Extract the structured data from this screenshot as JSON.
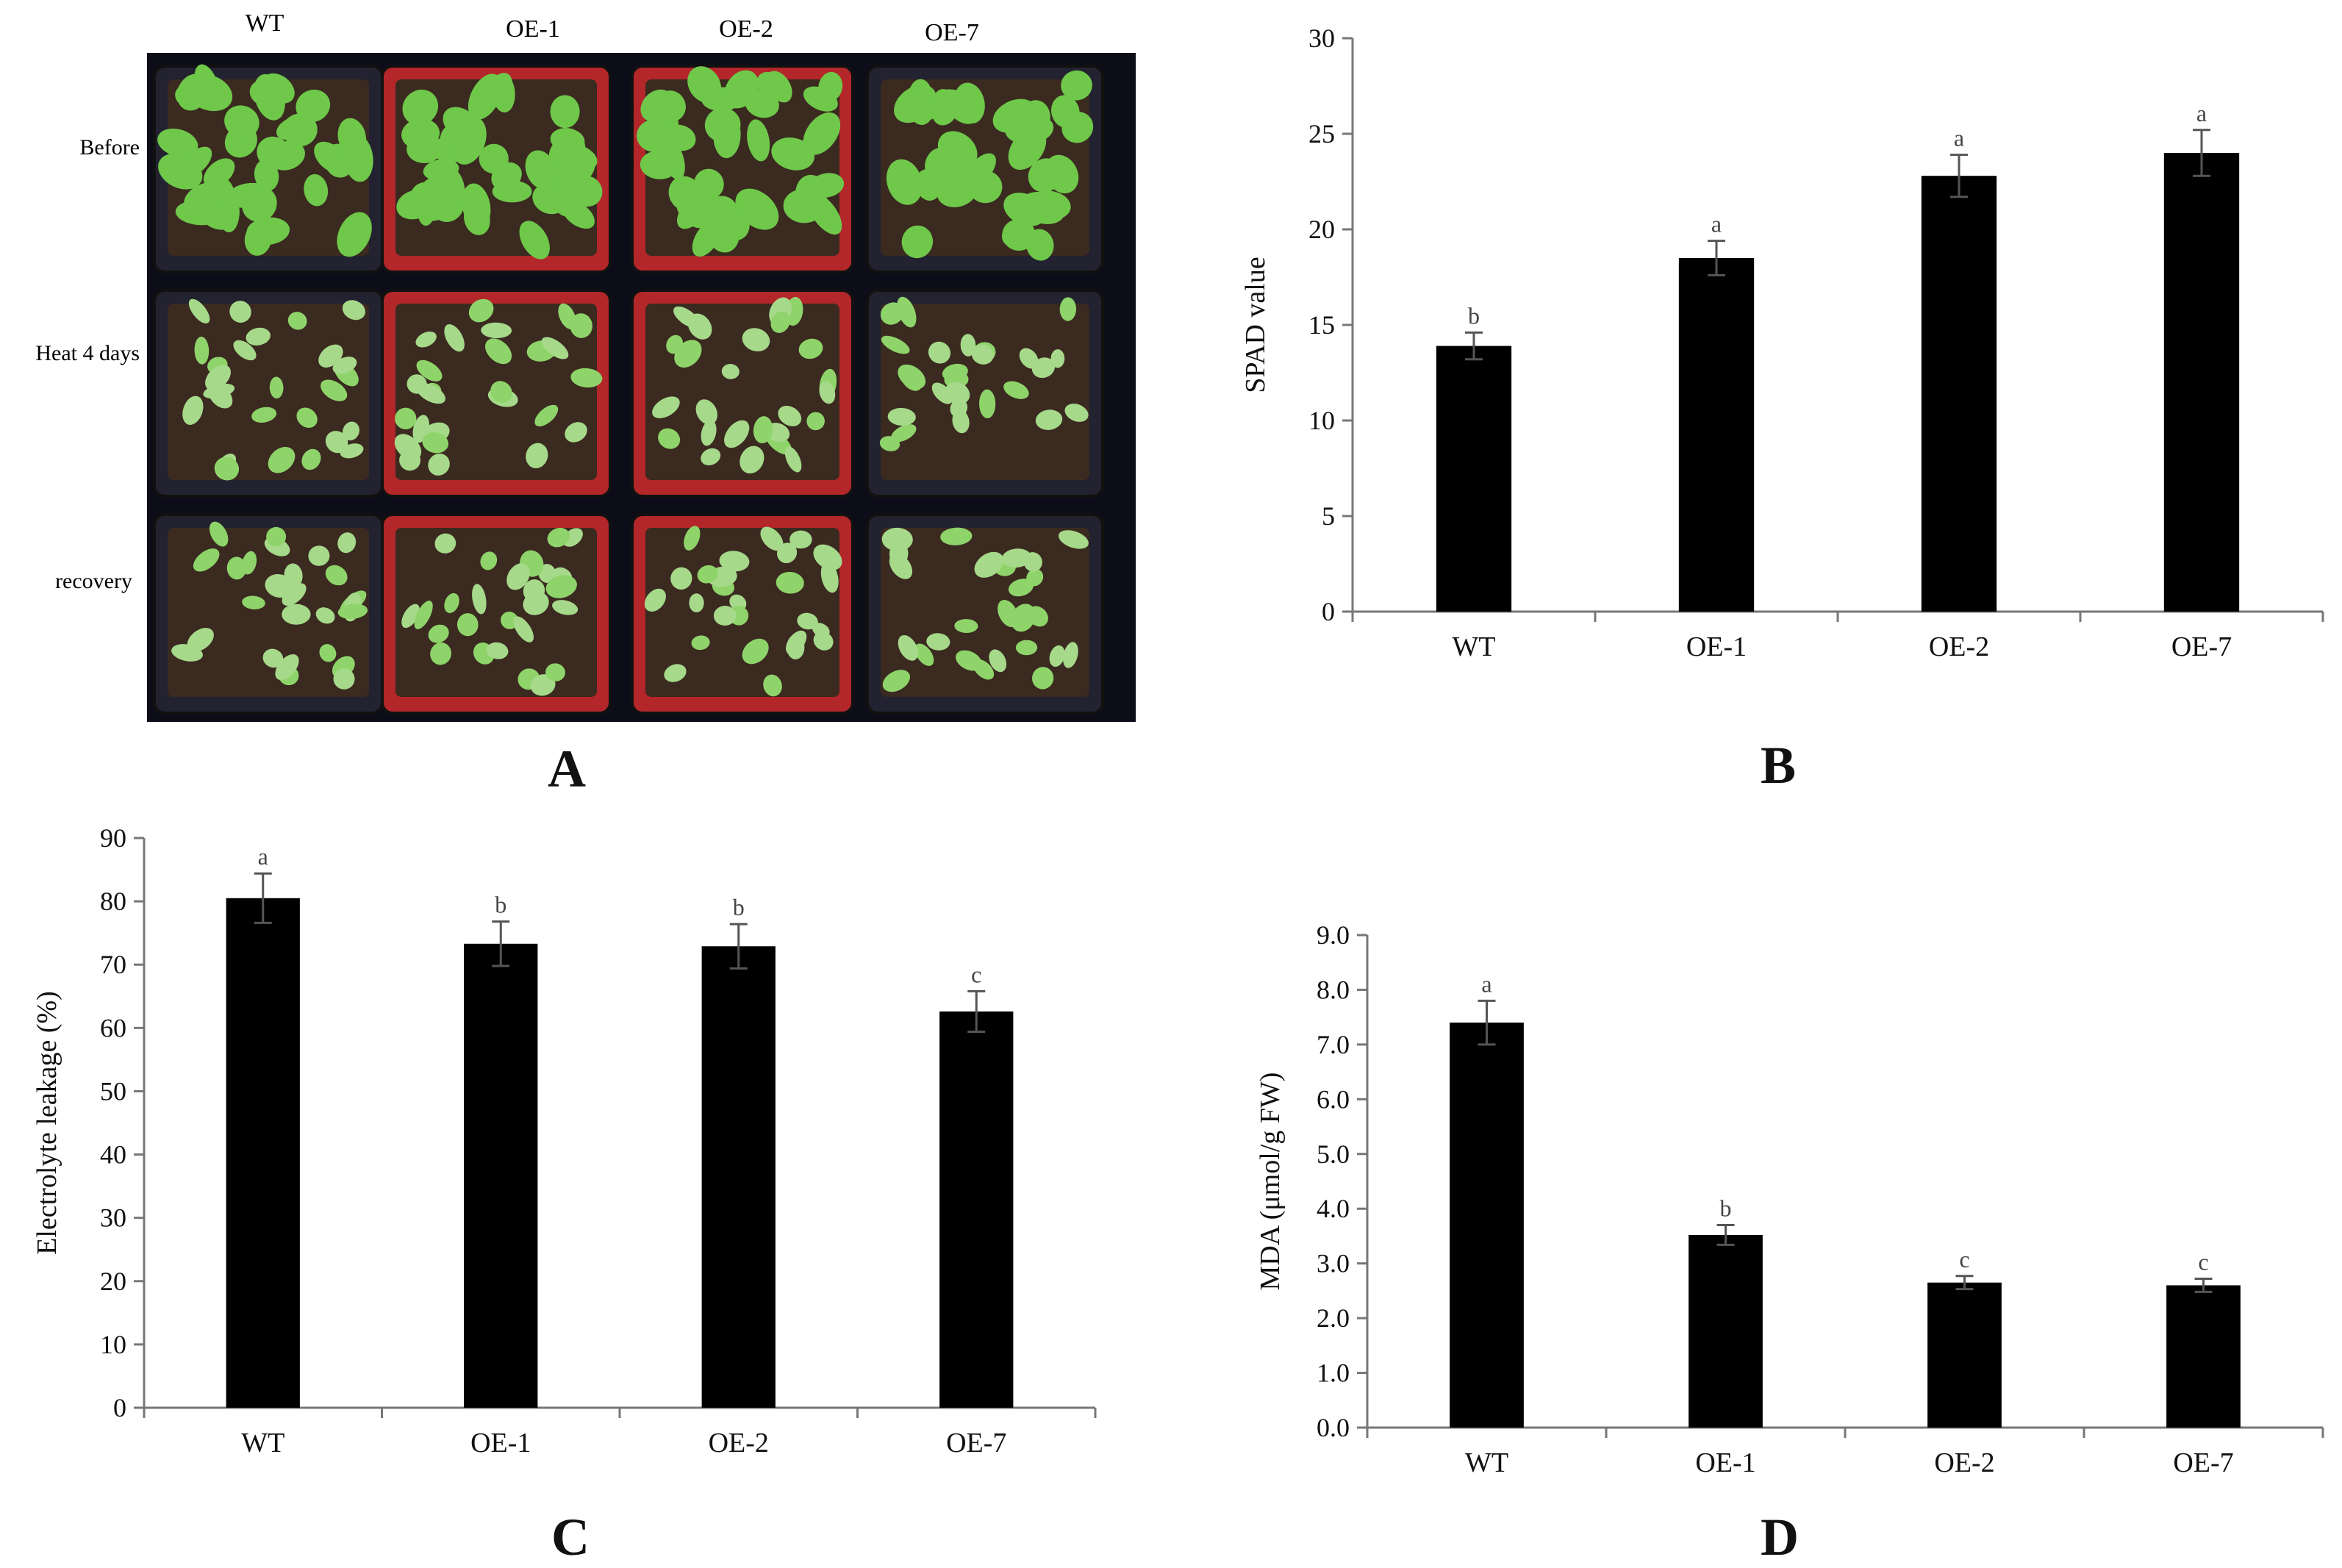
{
  "figure": {
    "panel_letters": [
      "A",
      "B",
      "C",
      "D"
    ]
  },
  "photo": {
    "columns": [
      "WT",
      "OE-1",
      "OE-2",
      "OE-7"
    ],
    "rows": [
      "Before",
      "Heat 4 days",
      "recovery"
    ],
    "colors": {
      "background": "#0d0d1a",
      "red_pot": "#b3262a",
      "dark_pot": "#222230",
      "plant": "#6fc84a",
      "soil": "#3a2a20"
    }
  },
  "chart_data": [
    {
      "panel": "B",
      "type": "bar",
      "categories": [
        "WT",
        "OE-1",
        "OE-2",
        "OE-7"
      ],
      "values": [
        13.9,
        18.5,
        22.8,
        24.0
      ],
      "errors": [
        0.7,
        0.9,
        1.1,
        1.2
      ],
      "significance": [
        "b",
        "a",
        "a",
        "a"
      ],
      "ylabel": "SPAD value",
      "xlabel": "",
      "ylim": [
        0,
        30
      ],
      "yticks": [
        "0",
        "5",
        "10",
        "15",
        "20",
        "25",
        "30"
      ],
      "bar_color": "#000000"
    },
    {
      "panel": "C",
      "type": "bar",
      "categories": [
        "WT",
        "OE-1",
        "OE-2",
        "OE-7"
      ],
      "values": [
        80.5,
        73.3,
        72.9,
        62.6
      ],
      "errors": [
        3.9,
        3.5,
        3.5,
        3.2
      ],
      "significance": [
        "a",
        "b",
        "b",
        "c"
      ],
      "ylabel": "Electrolyte leakage (%)",
      "xlabel": "",
      "ylim": [
        0,
        90
      ],
      "yticks": [
        "0",
        "10",
        "20",
        "30",
        "40",
        "50",
        "60",
        "70",
        "80",
        "90"
      ],
      "bar_color": "#000000"
    },
    {
      "panel": "D",
      "type": "bar",
      "categories": [
        "WT",
        "OE-1",
        "OE-2",
        "OE-7"
      ],
      "values": [
        7.4,
        3.52,
        2.65,
        2.6
      ],
      "errors": [
        0.4,
        0.18,
        0.12,
        0.12
      ],
      "significance": [
        "a",
        "b",
        "c",
        "c"
      ],
      "ylabel": "MDA (μmol/g FW)",
      "xlabel": "",
      "ylim": [
        0,
        9
      ],
      "yticks": [
        "0.0",
        "1.0",
        "2.0",
        "3.0",
        "4.0",
        "5.0",
        "6.0",
        "7.0",
        "8.0",
        "9.0"
      ],
      "bar_color": "#000000"
    }
  ]
}
